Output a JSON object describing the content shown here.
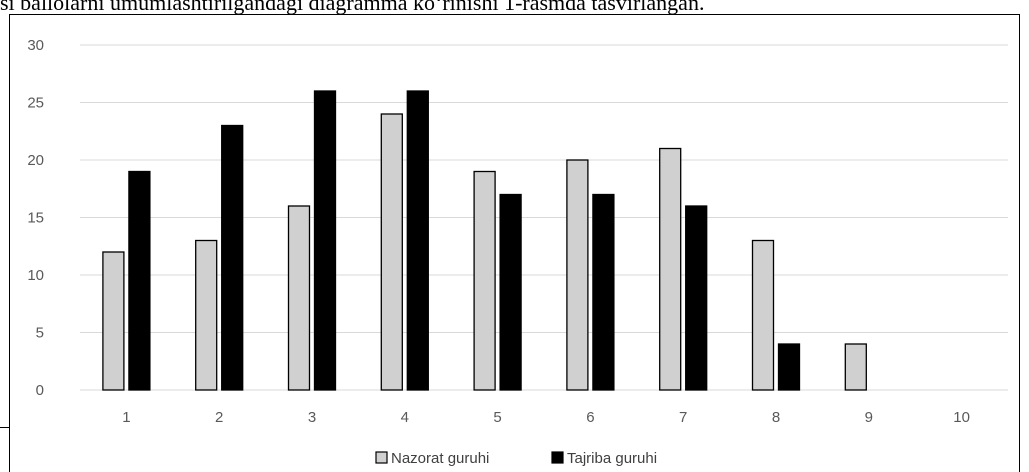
{
  "page": {
    "caption_fragment": "si ballolarni umumlashtirilgandagi diagramma ko‘rinishi 1-rasmda tasvirlangan."
  },
  "chart_data": {
    "type": "bar",
    "categories": [
      "1",
      "2",
      "3",
      "4",
      "5",
      "6",
      "7",
      "8",
      "9",
      "10"
    ],
    "series": [
      {
        "name": "Nazorat guruhi",
        "values": [
          12,
          13,
          16,
          24,
          19,
          20,
          21,
          13,
          4,
          0
        ],
        "color": "#d0d0d0",
        "stroke": "#000000"
      },
      {
        "name": "Tajriba guruhi",
        "values": [
          19,
          23,
          26,
          26,
          17,
          17,
          16,
          4,
          0,
          0
        ],
        "color": "#000000",
        "stroke": "#000000"
      }
    ],
    "yticks": [
      0,
      5,
      10,
      15,
      20,
      25,
      30
    ],
    "ylim": [
      0,
      30
    ],
    "grid": true,
    "legend_position": "bottom-center",
    "colors": {
      "grid": "#d9d9d9",
      "tick_text": "#595959",
      "legend_text": "#404040"
    }
  }
}
